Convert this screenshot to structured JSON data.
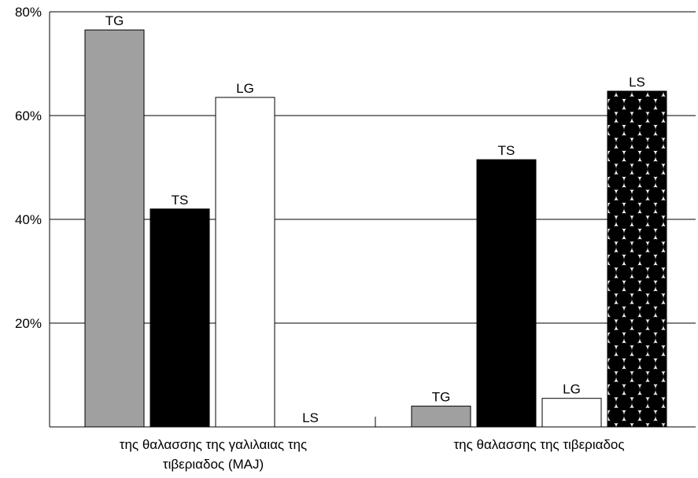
{
  "chart_data": {
    "type": "bar",
    "title": "",
    "xlabel": "",
    "ylabel": "",
    "ylim": [
      0,
      80
    ],
    "y_ticks": [
      20,
      40,
      60,
      80
    ],
    "y_tick_format": "%",
    "grid": true,
    "legend": "none",
    "groups": [
      {
        "label_lines": [
          "της θαλασσης της γαλιλαιας της",
          "τιβεριαδος (MAJ)"
        ],
        "bars": [
          {
            "label": "TG",
            "value": 76.5,
            "fill": "gray"
          },
          {
            "label": "TS",
            "value": 42,
            "fill": "black"
          },
          {
            "label": "LG",
            "value": 63.5,
            "fill": "white"
          },
          {
            "label": "LS",
            "value": 0,
            "fill": "dots"
          }
        ]
      },
      {
        "label_lines": [
          "της θαλασσης της τιβεριαδος"
        ],
        "bars": [
          {
            "label": "TG",
            "value": 4,
            "fill": "gray"
          },
          {
            "label": "TS",
            "value": 51.5,
            "fill": "black"
          },
          {
            "label": "LG",
            "value": 5.5,
            "fill": "white"
          },
          {
            "label": "LS",
            "value": 64.7,
            "fill": "dots"
          }
        ]
      }
    ]
  },
  "colors": {
    "gray": "#a0a0a0",
    "black": "#000000",
    "white": "#ffffff",
    "grid": "#000000"
  }
}
